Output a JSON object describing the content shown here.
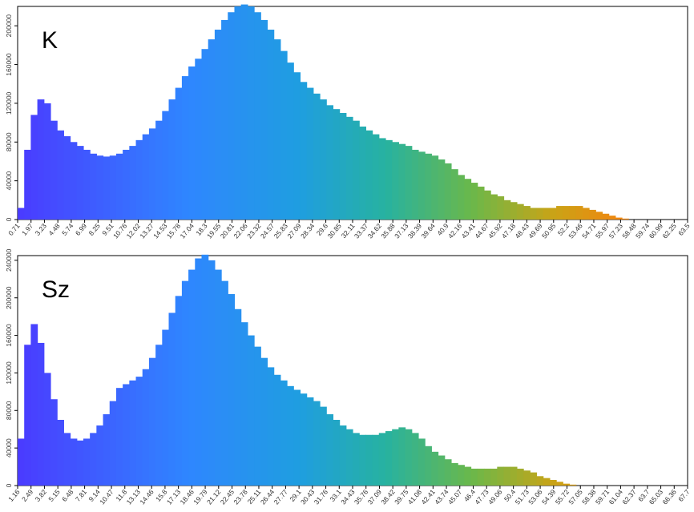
{
  "chart_data": [
    {
      "type": "bar",
      "title": "K",
      "xlabel": "",
      "ylabel": "",
      "ylim": [
        0,
        220000
      ],
      "yticks": [
        0,
        40000,
        80000,
        120000,
        160000,
        200000
      ],
      "xticks": [
        "0.71",
        "1.97",
        "3.23",
        "4.48",
        "5.74",
        "6.99",
        "8.25",
        "9.51",
        "10.76",
        "12.02",
        "13.27",
        "14.53",
        "15.78",
        "17.04",
        "18.3",
        "19.55",
        "20.81",
        "22.06",
        "23.32",
        "24.57",
        "25.83",
        "27.09",
        "28.34",
        "29.6",
        "30.85",
        "32.11",
        "33.37",
        "34.62",
        "35.88",
        "37.13",
        "38.39",
        "39.64",
        "40.9",
        "42.16",
        "43.41",
        "44.67",
        "45.92",
        "47.18",
        "48.43",
        "49.69",
        "50.95",
        "52.2",
        "53.46",
        "54.71",
        "55.97",
        "57.23",
        "58.48",
        "59.74",
        "60.99",
        "62.25",
        "63.5"
      ],
      "values": [
        12000,
        72000,
        108000,
        124000,
        120000,
        102000,
        92000,
        86000,
        80000,
        76000,
        72000,
        68000,
        66000,
        65000,
        66000,
        68000,
        72000,
        76000,
        82000,
        88000,
        94000,
        102000,
        112000,
        124000,
        136000,
        148000,
        158000,
        166000,
        176000,
        186000,
        196000,
        206000,
        214000,
        220000,
        222000,
        220000,
        214000,
        206000,
        196000,
        186000,
        174000,
        162000,
        152000,
        142000,
        136000,
        130000,
        124000,
        118000,
        114000,
        110000,
        106000,
        102000,
        96000,
        92000,
        88000,
        84000,
        82000,
        80000,
        78000,
        76000,
        72000,
        70000,
        68000,
        66000,
        62000,
        58000,
        52000,
        46000,
        42000,
        38000,
        34000,
        30000,
        26000,
        24000,
        20000,
        18000,
        16000,
        14000,
        12000,
        12000,
        12000,
        12000,
        14000,
        14000,
        14000,
        14000,
        12000,
        10000,
        8000,
        6000,
        4000,
        2000,
        1000,
        0,
        0,
        0,
        0,
        0,
        0,
        0,
        0,
        0
      ]
    },
    {
      "type": "bar",
      "title": "Sz",
      "xlabel": "",
      "ylabel": "",
      "ylim": [
        0,
        245000
      ],
      "yticks": [
        0,
        40000,
        80000,
        120000,
        160000,
        200000,
        240000
      ],
      "xticks": [
        "1.16",
        "2.49",
        "3.82",
        "5.15",
        "6.48",
        "7.81",
        "9.14",
        "10.47",
        "11.8",
        "13.13",
        "14.46",
        "15.8",
        "17.13",
        "18.46",
        "19.79",
        "21.12",
        "22.45",
        "23.78",
        "25.11",
        "26.44",
        "27.77",
        "29.1",
        "30.43",
        "31.76",
        "33.1",
        "34.43",
        "35.76",
        "37.09",
        "38.42",
        "39.75",
        "41.08",
        "42.41",
        "43.74",
        "45.07",
        "46.4",
        "47.73",
        "49.06",
        "50.4",
        "51.73",
        "53.06",
        "54.39",
        "55.72",
        "57.05",
        "58.38",
        "59.71",
        "61.04",
        "62.37",
        "63.7",
        "65.03",
        "66.36",
        "67.7"
      ],
      "values": [
        50000,
        150000,
        172000,
        152000,
        120000,
        92000,
        70000,
        56000,
        50000,
        48000,
        50000,
        56000,
        64000,
        76000,
        90000,
        104000,
        108000,
        112000,
        116000,
        124000,
        136000,
        150000,
        166000,
        184000,
        202000,
        218000,
        230000,
        242000,
        246000,
        240000,
        230000,
        218000,
        204000,
        188000,
        174000,
        160000,
        148000,
        136000,
        126000,
        118000,
        112000,
        106000,
        102000,
        98000,
        94000,
        90000,
        84000,
        76000,
        70000,
        64000,
        60000,
        56000,
        54000,
        54000,
        54000,
        56000,
        58000,
        60000,
        62000,
        60000,
        56000,
        50000,
        42000,
        36000,
        32000,
        28000,
        24000,
        22000,
        20000,
        18000,
        18000,
        18000,
        18000,
        20000,
        20000,
        20000,
        18000,
        16000,
        14000,
        10000,
        8000,
        6000,
        4000,
        2000,
        1000,
        0,
        0,
        0,
        0,
        0,
        0,
        0,
        0,
        0,
        0,
        0,
        0,
        0,
        0,
        0,
        0,
        0
      ]
    }
  ]
}
